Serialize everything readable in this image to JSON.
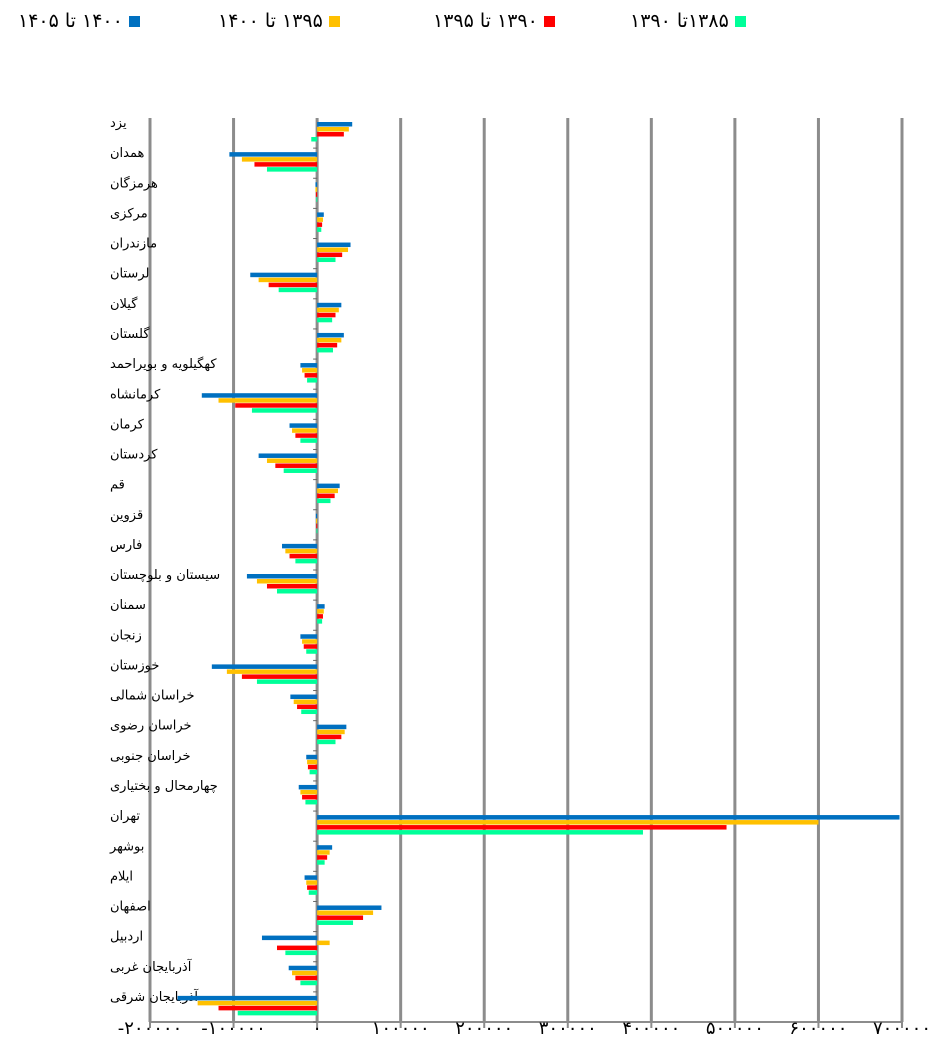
{
  "chart_data": {
    "type": "bar",
    "orientation": "horizontal",
    "categories": [
      "یزد",
      "همدان",
      "هرمزگان",
      "مرکزی",
      "مازندران",
      "لرستان",
      "گیلان",
      "گلستان",
      "کهگیلویه و بویراحمد",
      "کرمانشاه",
      "کرمان",
      "کردستان",
      "قم",
      "قزوین",
      "فارس",
      "سیستان و بلوچستان",
      "سمنان",
      "زنجان",
      "خوزستان",
      "خراسان شمالی",
      "خراسان رضوی",
      "خراسان جنوبی",
      "چهارمحال و بختیاری",
      "تهران",
      "بوشهر",
      "ایلام",
      "اصفهان",
      "اردبیل",
      "آذربایجان غربی",
      "آذربایجان شرقی"
    ],
    "series": [
      {
        "name": "۱۴۰۰ تا ۱۴۰۵",
        "color": "#0070C0",
        "values": [
          42000,
          -105000,
          -2000,
          8000,
          40000,
          -80000,
          29000,
          32000,
          -20000,
          -138000,
          -33000,
          -70000,
          27000,
          -1500,
          -42000,
          -84000,
          9000,
          -20000,
          -126000,
          -32000,
          35000,
          -13000,
          -22000,
          697000,
          18000,
          -15000,
          77000,
          -66000,
          -34000,
          -167000
        ]
      },
      {
        "name": "۱۳۹۵ تا ۱۴۰۰",
        "color": "#FFC000",
        "values": [
          38000,
          -90000,
          -2000,
          7000,
          37000,
          -70000,
          26000,
          29000,
          -18000,
          -118000,
          -30000,
          -60000,
          25000,
          -1300,
          -38000,
          -72000,
          8000,
          -18000,
          -108000,
          -28000,
          33000,
          -12000,
          -20000,
          600000,
          15000,
          -13000,
          67000,
          15000,
          -30000,
          -143000
        ]
      },
      {
        "name": "۱۳۹۰ تا ۱۳۹۵",
        "color": "#FF0000",
        "values": [
          32000,
          -75000,
          -1500,
          6000,
          30000,
          -58000,
          22000,
          24000,
          -15000,
          -98000,
          -26000,
          -50000,
          21000,
          -1000,
          -33000,
          -60000,
          7000,
          -16000,
          -90000,
          -24000,
          29000,
          -11000,
          -18000,
          490000,
          12000,
          -12000,
          55000,
          -48000,
          -26000,
          -118000
        ]
      },
      {
        "name": "۱۳۸۵تا ۱۳۹۰",
        "color": "#00FF99",
        "values": [
          -7000,
          -60000,
          -1000,
          5000,
          22000,
          -46000,
          18000,
          19000,
          -12000,
          -78000,
          -20000,
          -40000,
          16000,
          -800,
          -26000,
          -48000,
          6000,
          -13000,
          -72000,
          -19000,
          22000,
          -9000,
          -14000,
          390000,
          9000,
          -10000,
          43000,
          -38000,
          -20000,
          -95000
        ]
      }
    ],
    "legend_order_left_to_right": [
      "۱۴۰۰ تا ۱۴۰۵",
      "۱۳۹۵ تا ۱۴۰۰",
      "۱۳۹۰ تا ۱۳۹۵",
      "۱۳۸۵تا ۱۳۹۰"
    ],
    "x_tick_labels": [
      "-۲۰۰۰۰۰",
      "-۱۰۰۰۰۰",
      "۰",
      "۱۰۰۰۰۰",
      "۲۰۰۰۰۰",
      "۳۰۰۰۰۰",
      "۴۰۰۰۰۰",
      "۵۰۰۰۰۰",
      "۶۰۰۰۰۰",
      "۷۰۰۰۰۰"
    ],
    "x_ticks": [
      -200000,
      -100000,
      0,
      100000,
      200000,
      300000,
      400000,
      500000,
      600000,
      700000
    ],
    "xlim": [
      -200000,
      700000
    ],
    "grid": true,
    "legend_position": "top",
    "title": "",
    "xlabel": "",
    "ylabel": ""
  }
}
